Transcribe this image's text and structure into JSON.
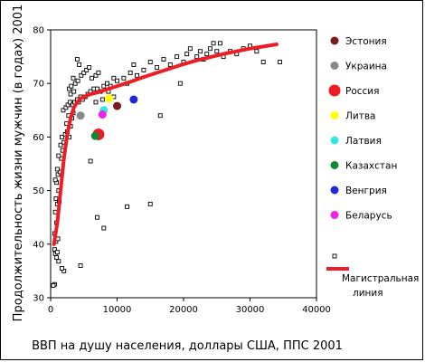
{
  "chart_data": {
    "type": "scatter",
    "xlabel": "ВВП на душу населения, доллары США, ППС 2001",
    "ylabel": "Продолжительность жизни мужчин (в годах) 2001",
    "xlim": [
      0,
      40000
    ],
    "ylim": [
      30,
      80
    ],
    "x_ticks": [
      0,
      10000,
      20000,
      30000,
      40000
    ],
    "y_ticks": [
      30,
      40,
      50,
      60,
      70,
      80
    ],
    "x_tick_labels": [
      "0",
      "10000",
      "20000",
      "30000",
      "40000"
    ],
    "y_tick_labels": [
      "30",
      "40",
      "50",
      "60",
      "70",
      "80"
    ],
    "grid": false,
    "legend_position": "right",
    "others_series": {
      "marker": "open-square",
      "color": "#000000",
      "points": [
        [
          600,
          32.5
        ],
        [
          400,
          32.3
        ],
        [
          900,
          37.5
        ],
        [
          700,
          38.2
        ],
        [
          600,
          39.0
        ],
        [
          1000,
          38.5
        ],
        [
          800,
          40.5
        ],
        [
          1200,
          36.8
        ],
        [
          1100,
          41.0
        ],
        [
          900,
          44.0
        ],
        [
          600,
          42.0
        ],
        [
          700,
          46.0
        ],
        [
          1000,
          47.5
        ],
        [
          800,
          48.5
        ],
        [
          1300,
          48.0
        ],
        [
          1200,
          50.0
        ],
        [
          900,
          51.5
        ],
        [
          700,
          52.0
        ],
        [
          1100,
          53.0
        ],
        [
          1400,
          53.5
        ],
        [
          1000,
          54.0
        ],
        [
          1600,
          56.0
        ],
        [
          1200,
          56.5
        ],
        [
          1800,
          57.5
        ],
        [
          1500,
          58.5
        ],
        [
          2000,
          59.0
        ],
        [
          1700,
          60.0
        ],
        [
          2200,
          60.5
        ],
        [
          2500,
          61.0
        ],
        [
          2800,
          60.0
        ],
        [
          2400,
          62.5
        ],
        [
          3000,
          62.0
        ],
        [
          3200,
          63.5
        ],
        [
          2700,
          64.0
        ],
        [
          3400,
          64.5
        ],
        [
          1900,
          65.0
        ],
        [
          2300,
          65.5
        ],
        [
          2600,
          66.0
        ],
        [
          2900,
          66.5
        ],
        [
          3300,
          66.0
        ],
        [
          3600,
          66.5
        ],
        [
          4000,
          67.0
        ],
        [
          4200,
          66.5
        ],
        [
          4500,
          67.5
        ],
        [
          4800,
          67.0
        ],
        [
          5200,
          67.5
        ],
        [
          5600,
          68.0
        ],
        [
          6000,
          68.5
        ],
        [
          6500,
          69.0
        ],
        [
          7000,
          69.0
        ],
        [
          7500,
          68.5
        ],
        [
          8000,
          69.5
        ],
        [
          8500,
          70.0
        ],
        [
          9000,
          69.5
        ],
        [
          3000,
          68.0
        ],
        [
          3500,
          68.5
        ],
        [
          2800,
          69.0
        ],
        [
          3100,
          69.5
        ],
        [
          3700,
          70.0
        ],
        [
          4100,
          70.5
        ],
        [
          3400,
          71.0
        ],
        [
          4600,
          71.5
        ],
        [
          5000,
          72.0
        ],
        [
          5400,
          72.5
        ],
        [
          4300,
          73.5
        ],
        [
          4000,
          74.5
        ],
        [
          5800,
          73.0
        ],
        [
          6200,
          71.0
        ],
        [
          6800,
          71.5
        ],
        [
          7200,
          72.0
        ],
        [
          9500,
          71.0
        ],
        [
          10000,
          70.5
        ],
        [
          11000,
          71.0
        ],
        [
          11500,
          70.0
        ],
        [
          12000,
          72.0
        ],
        [
          12500,
          73.5
        ],
        [
          13000,
          71.5
        ],
        [
          14000,
          72.5
        ],
        [
          15000,
          74.0
        ],
        [
          16000,
          73.0
        ],
        [
          17000,
          74.5
        ],
        [
          18000,
          73.5
        ],
        [
          19000,
          75.0
        ],
        [
          20000,
          74.0
        ],
        [
          20500,
          75.5
        ],
        [
          21000,
          76.5
        ],
        [
          22000,
          75.0
        ],
        [
          22500,
          76.0
        ],
        [
          23000,
          74.5
        ],
        [
          23500,
          75.5
        ],
        [
          24000,
          76.5
        ],
        [
          24500,
          77.5
        ],
        [
          25000,
          76.0
        ],
        [
          25500,
          77.5
        ],
        [
          26000,
          75.0
        ],
        [
          27000,
          76.0
        ],
        [
          28000,
          75.5
        ],
        [
          29000,
          76.5
        ],
        [
          30000,
          77.0
        ],
        [
          31000,
          76.0
        ],
        [
          32000,
          74.0
        ],
        [
          34500,
          74.0
        ],
        [
          19500,
          70.0
        ],
        [
          16500,
          64.0
        ],
        [
          15000,
          47.5
        ],
        [
          11500,
          47.0
        ],
        [
          8000,
          43.0
        ],
        [
          7000,
          45.0
        ],
        [
          6000,
          55.5
        ],
        [
          4500,
          36.0
        ],
        [
          2000,
          35.0
        ],
        [
          1700,
          35.5
        ],
        [
          9500,
          67.5
        ],
        [
          8700,
          68.5
        ],
        [
          7800,
          67.0
        ],
        [
          6800,
          66.5
        ]
      ]
    },
    "highlighted_series": [
      {
        "name": "Эстония",
        "x": 10000,
        "y": 65.8,
        "color": "#7b1a1a",
        "radius": 4.5
      },
      {
        "name": "Украина",
        "x": 4500,
        "y": 64.0,
        "color": "#888888",
        "radius": 4.5
      },
      {
        "name": "Россия",
        "x": 7200,
        "y": 60.5,
        "color": "#ee1c24",
        "radius": 6.5
      },
      {
        "name": "Литва",
        "x": 8800,
        "y": 67.2,
        "color": "#ffff00",
        "radius": 4.5
      },
      {
        "name": "Латвия",
        "x": 8000,
        "y": 65.0,
        "color": "#33e6e6",
        "radius": 4.5
      },
      {
        "name": "Казахстан",
        "x": 6700,
        "y": 60.2,
        "color": "#118833",
        "radius": 4.5
      },
      {
        "name": "Венгрия",
        "x": 12500,
        "y": 67.0,
        "color": "#1d2bd6",
        "radius": 4.5
      },
      {
        "name": "Беларусь",
        "x": 7800,
        "y": 64.2,
        "color": "#ee22ee",
        "radius": 4.5
      }
    ],
    "trend_line": {
      "name": "Магистральная линия",
      "color": "#ee1c24",
      "points": [
        [
          500,
          40.0
        ],
        [
          1000,
          44.0
        ],
        [
          1500,
          50.0
        ],
        [
          2000,
          56.0
        ],
        [
          2500,
          60.5
        ],
        [
          3000,
          63.5
        ],
        [
          3500,
          65.5
        ],
        [
          4000,
          66.5
        ],
        [
          4500,
          67.2
        ],
        [
          5000,
          67.5
        ],
        [
          6000,
          68.0
        ],
        [
          7000,
          68.3
        ],
        [
          8000,
          68.7
        ],
        [
          10000,
          69.5
        ],
        [
          12000,
          70.3
        ],
        [
          14000,
          71.2
        ],
        [
          16000,
          72.0
        ],
        [
          18000,
          72.8
        ],
        [
          20000,
          73.6
        ],
        [
          22000,
          74.3
        ],
        [
          24000,
          74.9
        ],
        [
          26000,
          75.5
        ],
        [
          28000,
          76.0
        ],
        [
          30000,
          76.5
        ],
        [
          32000,
          76.9
        ],
        [
          34000,
          77.3
        ]
      ]
    }
  }
}
